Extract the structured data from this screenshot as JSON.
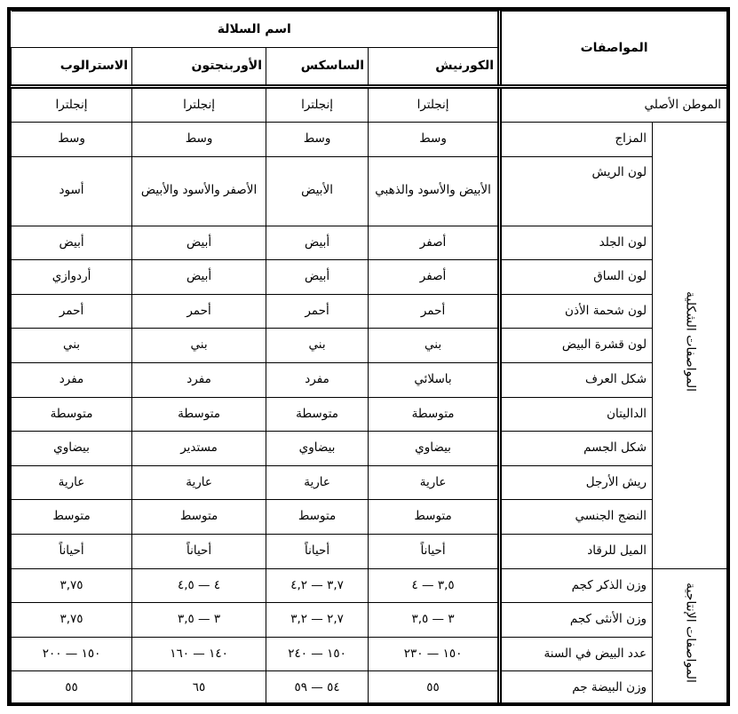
{
  "header": {
    "traits_label": "المواصفات",
    "breed_name_label": "اسم السلالة",
    "breeds": [
      "الكورنيش",
      "الساسكس",
      "الأوربنجتون",
      "الاسترالوب"
    ]
  },
  "origin_row": {
    "label": "الموطن الأصلي",
    "values": [
      "إنجلترا",
      "إنجلترا",
      "إنجلترا",
      "إنجلترا"
    ]
  },
  "groups": [
    {
      "label": "المواصفات الشكلية",
      "rows": [
        {
          "label": "المزاج",
          "values": [
            "وسط",
            "وسط",
            "وسط",
            "وسط"
          ]
        },
        {
          "label": "لون الريش",
          "values": [
            "الأبيض والأسود والذهبي",
            "الأبيض",
            "الأصفر والأسود والأبيض",
            "أسود"
          ]
        },
        {
          "label": "لون الجلد",
          "values": [
            "أصفر",
            "أبيض",
            "أبيض",
            "أبيض"
          ]
        },
        {
          "label": "لون الساق",
          "values": [
            "أصفر",
            "أبيض",
            "أبيض",
            "أردوازي"
          ]
        },
        {
          "label": "لون شحمة الأذن",
          "values": [
            "أحمر",
            "أحمر",
            "أحمر",
            "أحمر"
          ]
        },
        {
          "label": "لون قشرة البيض",
          "values": [
            "بني",
            "بني",
            "بني",
            "بني"
          ]
        },
        {
          "label": "شكل العرف",
          "values": [
            "باسلائي",
            "مفرد",
            "مفرد",
            "مفرد"
          ]
        },
        {
          "label": "الداليتان",
          "values": [
            "متوسطة",
            "متوسطة",
            "متوسطة",
            "متوسطة"
          ]
        },
        {
          "label": "شكل الجسم",
          "values": [
            "بيضاوي",
            "بيضاوي",
            "مستدير",
            "بيضاوي"
          ]
        },
        {
          "label": "ريش الأرجل",
          "values": [
            "عارية",
            "عارية",
            "عارية",
            "عارية"
          ]
        },
        {
          "label": "النضج الجنسي",
          "values": [
            "متوسط",
            "متوسط",
            "متوسط",
            "متوسط"
          ]
        },
        {
          "label": "الميل للرقاد",
          "values": [
            "أحياناً",
            "أحياناً",
            "أحياناً",
            "أحياناً"
          ]
        }
      ]
    },
    {
      "label": "المواصفات الإنتاجية",
      "rows": [
        {
          "label": "وزن الذكر كجم",
          "values": [
            "٣,٥ — ٤",
            "٣,٧ — ٤,٢",
            "٤ — ٤,٥",
            "٣,٧٥"
          ]
        },
        {
          "label": "وزن الأنثى كجم",
          "values": [
            "٣ — ٣,٥",
            "٢,٧ — ٣,٢",
            "٣ — ٣,٥",
            "٣,٧٥"
          ]
        },
        {
          "label": "عدد البيض في السنة",
          "values": [
            "١٥٠ — ٢٣٠",
            "١٥٠ — ٢٤٠",
            "١٤٠ — ١٦٠",
            "١٥٠ — ٢٠٠"
          ]
        },
        {
          "label": "وزن البيضة جم",
          "values": [
            "٥٥",
            "٥٤ — ٥٩",
            "٦٥",
            "٥٥"
          ]
        }
      ]
    }
  ]
}
